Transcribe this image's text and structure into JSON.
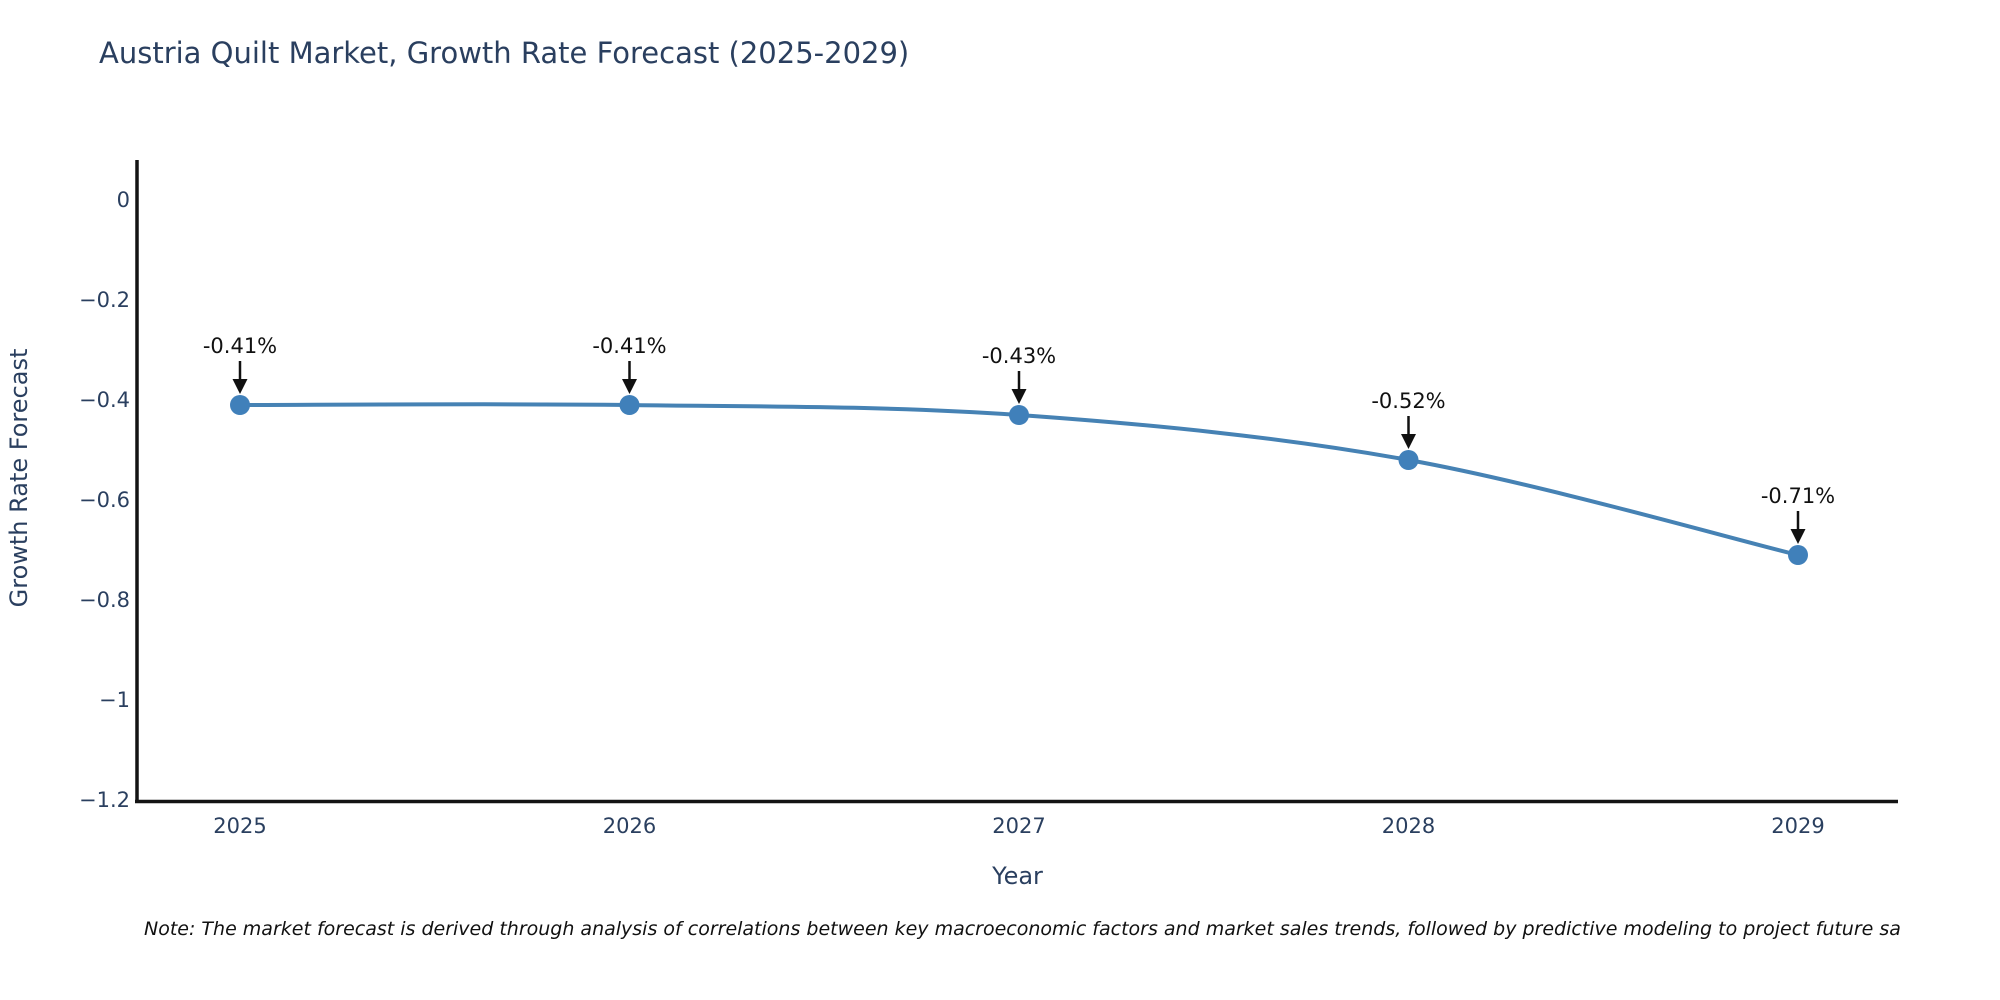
{
  "chart_data": {
    "type": "line",
    "title": "Austria Quilt Market, Growth Rate Forecast (2025-2029)",
    "xlabel": "Year",
    "ylabel": "Growth Rate Forecast",
    "categories": [
      "2025",
      "2026",
      "2027",
      "2028",
      "2029"
    ],
    "values": [
      -0.41,
      -0.41,
      -0.43,
      -0.52,
      -0.71
    ],
    "point_labels": [
      "-0.41%",
      "-0.41%",
      "-0.43%",
      "-0.52%",
      "-0.71%"
    ],
    "ytick_labels": [
      "0",
      "−0.2",
      "−0.4",
      "−0.6",
      "−0.8",
      "−1",
      "−1.2"
    ],
    "ytick_values": [
      0,
      -0.2,
      -0.4,
      -0.6,
      -0.8,
      -1,
      -1.2
    ],
    "ylim": [
      -1.2,
      0.09
    ],
    "grid": false,
    "legend": "none",
    "line_shape": "spline",
    "colors": {
      "line": "#4682b4",
      "marker": "#4080ba",
      "axis": "#141414",
      "tick_text": "#2a3f5f",
      "title_text": "#2a3f5f",
      "annotation": "#111111",
      "background": "#ffffff"
    },
    "note": "Note: The market forecast is derived through analysis of correlations between key macroeconomic factors and market sales trends, followed by predictive modeling to project future sa"
  }
}
